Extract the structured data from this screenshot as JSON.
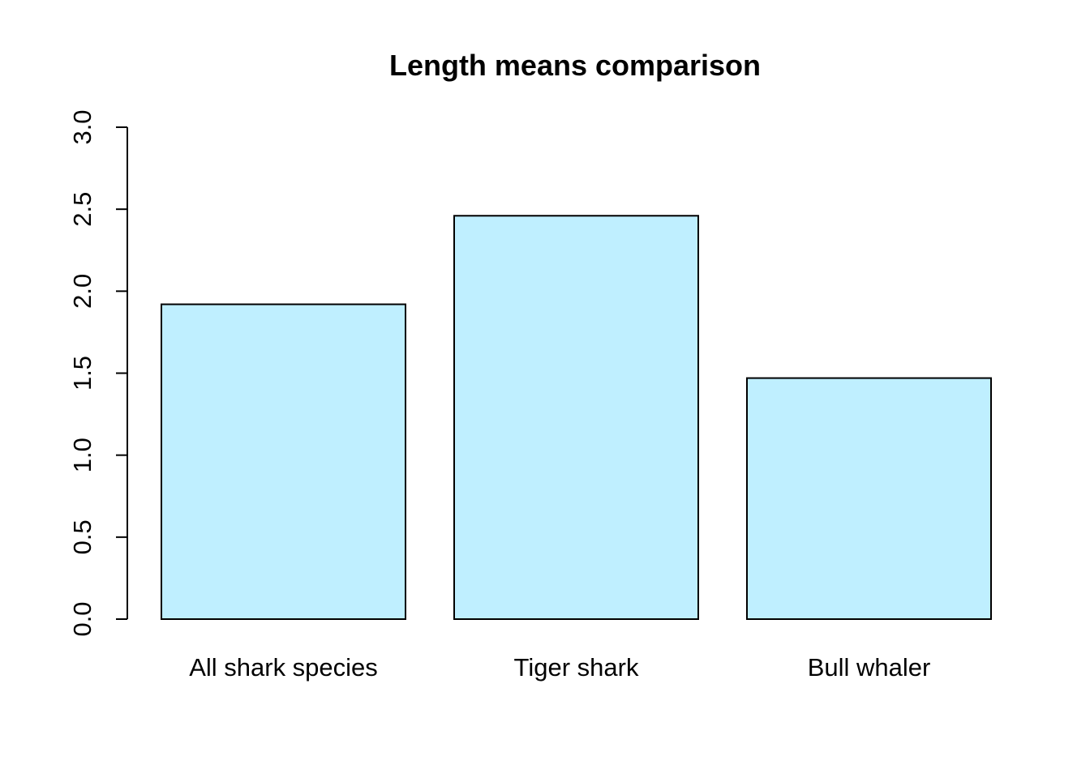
{
  "chart_data": {
    "type": "bar",
    "title": "Length means comparison",
    "xlabel": "",
    "ylabel": "",
    "categories": [
      "All shark species",
      "Tiger shark",
      "Bull whaler"
    ],
    "values": [
      1.92,
      2.46,
      1.47
    ],
    "ylim": [
      0,
      3
    ],
    "yticks": [
      "0.0",
      "0.5",
      "1.0",
      "1.5",
      "2.0",
      "2.5",
      "3.0"
    ],
    "bar_color": "#BFEFFF",
    "bar_border_color": "#000000",
    "grid": false,
    "legend": "none"
  }
}
